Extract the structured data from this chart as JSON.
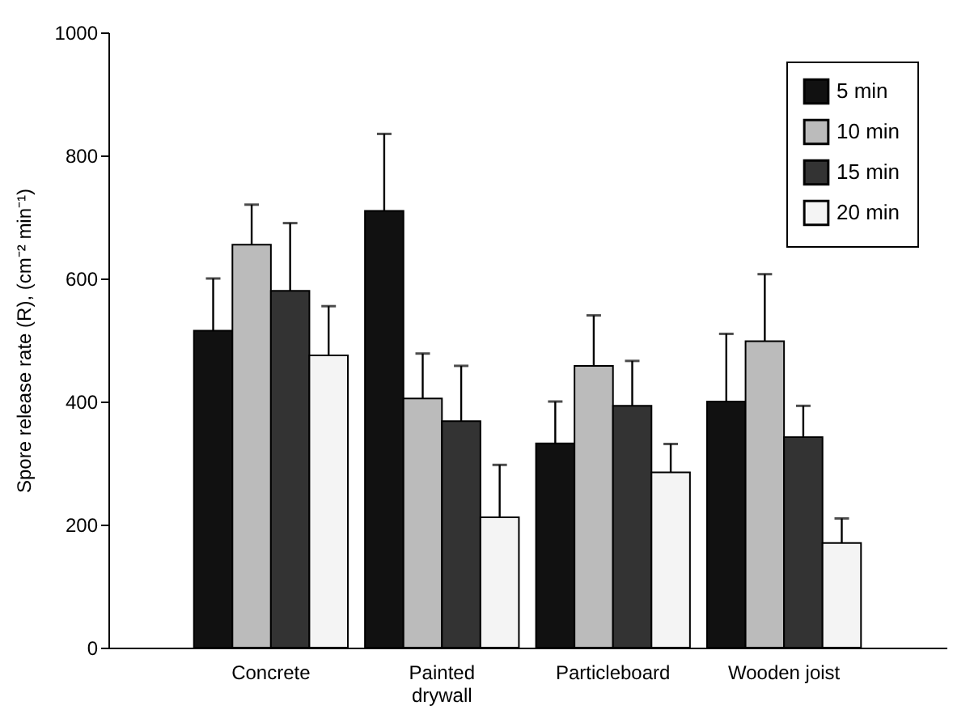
{
  "chart_data": {
    "type": "bar",
    "ylabel": "Spore release rate (R), (cm⁻² min⁻¹)",
    "categories": [
      "Concrete",
      "Painted\ndrywall",
      "Particleboard",
      "Wooden joist"
    ],
    "series": [
      {
        "name": "5 min",
        "color": "#111111",
        "values": [
          515,
          710,
          332,
          400
        ],
        "errors": [
          [
            515,
            600
          ],
          [
            710,
            835
          ],
          [
            332,
            400
          ],
          [
            400,
            510
          ]
        ]
      },
      {
        "name": "10 min",
        "color": "#bbbbbb",
        "values": [
          655,
          405,
          458,
          498
        ],
        "errors": [
          [
            655,
            720
          ],
          [
            405,
            478
          ],
          [
            458,
            540
          ],
          [
            498,
            607
          ]
        ]
      },
      {
        "name": "15 min",
        "color": "#333333",
        "values": [
          580,
          368,
          393,
          342
        ],
        "errors": [
          [
            580,
            690
          ],
          [
            368,
            458
          ],
          [
            393,
            466
          ],
          [
            342,
            393
          ]
        ]
      },
      {
        "name": "20 min",
        "color": "#f4f4f4",
        "values": [
          475,
          212,
          285,
          170
        ],
        "errors": [
          [
            475,
            555
          ],
          [
            212,
            297
          ],
          [
            285,
            331
          ],
          [
            170,
            210
          ]
        ]
      }
    ],
    "ylim": [
      0,
      1000
    ],
    "yticks": [
      0,
      200,
      400,
      600,
      800,
      1000
    ],
    "grid": false,
    "legend": "top right"
  }
}
